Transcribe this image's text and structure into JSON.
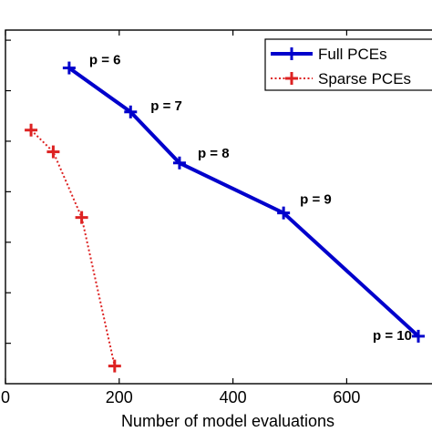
{
  "chart_data": {
    "type": "line",
    "title": "",
    "xlabel": "Number of model evaluations",
    "ylabel": "",
    "xlim": [
      0,
      750
    ],
    "x_ticks": [
      0,
      200,
      400,
      600
    ],
    "x_tick_labels": [
      "0",
      "200",
      "400",
      "600"
    ],
    "y_log_scale": true,
    "y_tick_labels_visible": false,
    "ylim_log10": [
      -8.8,
      -1.8
    ],
    "grid": false,
    "legend_position": "top-right",
    "series": [
      {
        "name": "Full PCEs",
        "color": "#0000cc",
        "line_style": "solid",
        "marker": "plus",
        "x": [
          112,
          220,
          306,
          489,
          726
        ],
        "log10_y": [
          -2.55,
          -3.42,
          -4.43,
          -5.42,
          -7.86
        ],
        "point_labels": [
          "p = 6",
          "p = 7",
          "p = 8",
          "p = 9",
          "p = 10"
        ]
      },
      {
        "name": "Sparse PCEs",
        "color": "#dd2222",
        "line_style": "dotted",
        "marker": "plus",
        "x": [
          45,
          84,
          134,
          192
        ],
        "log10_y": [
          -3.78,
          -4.21,
          -5.51,
          -8.45
        ],
        "point_labels": []
      }
    ]
  }
}
